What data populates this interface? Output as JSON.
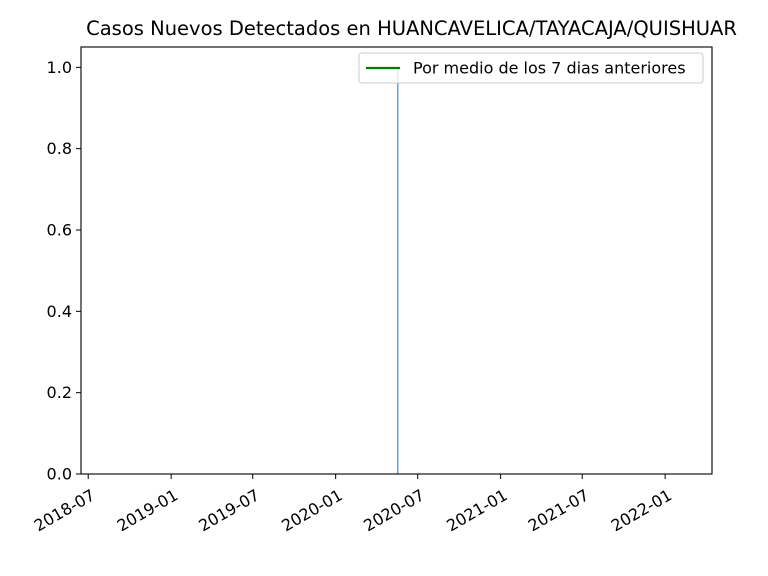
{
  "chart_data": {
    "type": "bar",
    "title": "Casos Nuevos Detectados en HUANCAVELICA/TAYACAJA/QUISHUAR",
    "xlabel": "",
    "ylabel": "",
    "x_axis": {
      "type": "date",
      "ticks": [
        "2018-07",
        "2019-01",
        "2019-07",
        "2020-01",
        "2020-07",
        "2021-01",
        "2021-07",
        "2022-01"
      ],
      "range": [
        "2018-06-15",
        "2022-04-15"
      ]
    },
    "y_axis": {
      "ticks": [
        "0.0",
        "0.2",
        "0.4",
        "0.6",
        "0.8",
        "1.0"
      ],
      "range": [
        0,
        1.05
      ]
    },
    "bars": [
      {
        "date": "2020-05-18",
        "value": 1,
        "color": "#1f77b4"
      }
    ],
    "series": [
      {
        "name": "Por medio de los 7 dias anteriores",
        "color": "#008000",
        "values": []
      }
    ],
    "legend_position": "top-right",
    "grid": false
  }
}
